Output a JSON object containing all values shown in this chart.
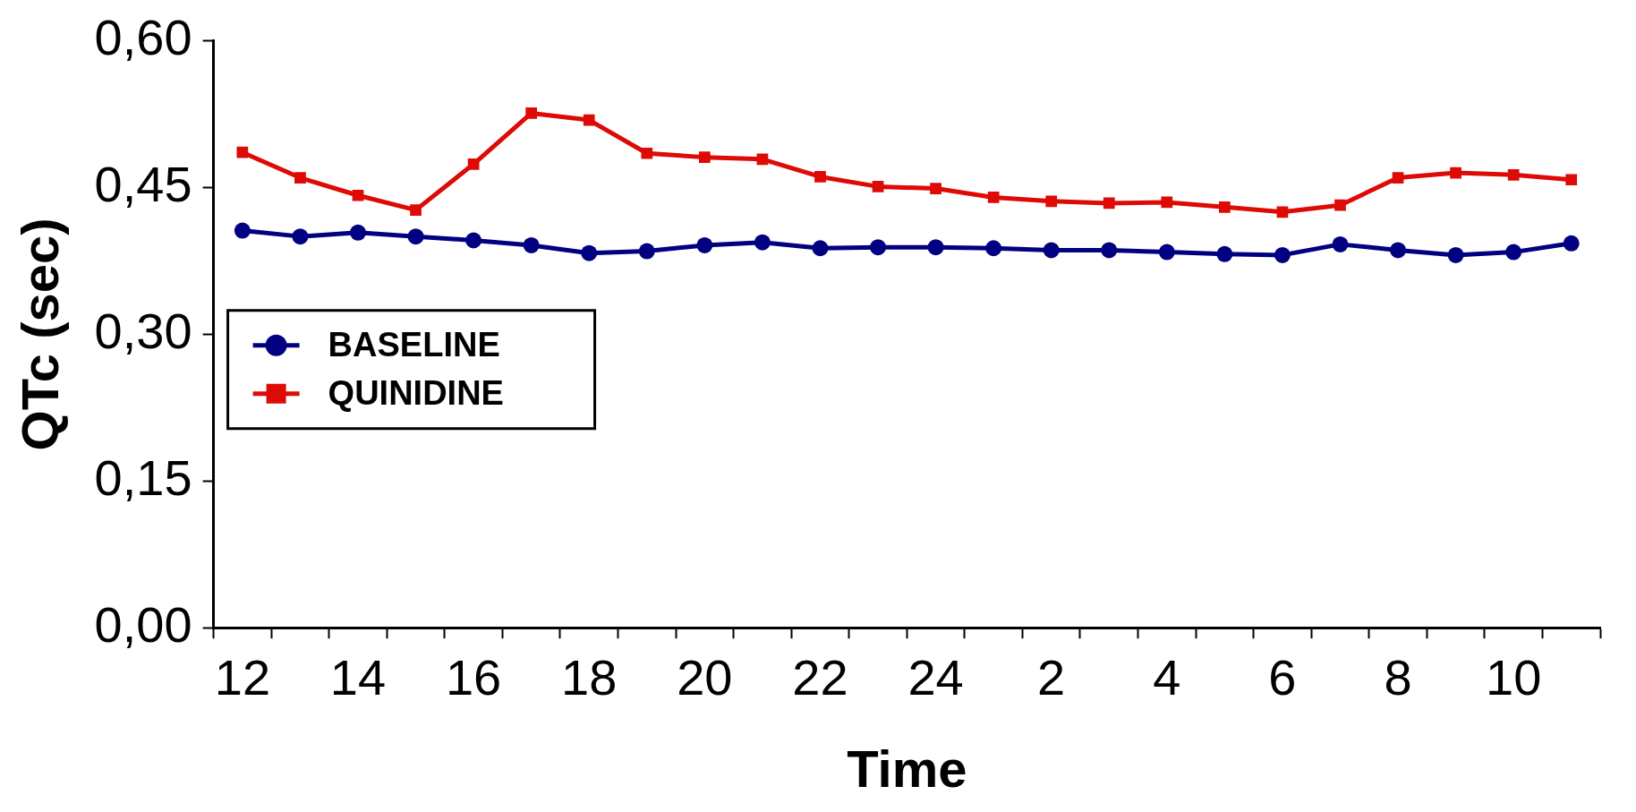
{
  "chart_data": {
    "type": "line",
    "xlabel": "Time",
    "ylabel": "QTc (sec)",
    "categories": [
      "12",
      null,
      "14",
      null,
      "16",
      null,
      "18",
      null,
      "20",
      null,
      "22",
      null,
      "24",
      null,
      "2",
      null,
      "4",
      null,
      "6",
      null,
      "8",
      null,
      "10",
      null
    ],
    "series": [
      {
        "name": "BASELINE",
        "color": "#000080",
        "marker": "circle",
        "values": [
          0.406,
          0.4,
          0.404,
          0.4,
          0.396,
          0.391,
          0.383,
          0.385,
          0.391,
          0.394,
          0.388,
          0.389,
          0.389,
          0.388,
          0.386,
          0.386,
          0.384,
          0.382,
          0.381,
          0.392,
          0.386,
          0.381,
          0.384,
          0.393
        ]
      },
      {
        "name": "QUINIDINE",
        "color": "#dd0a05",
        "marker": "square",
        "values": [
          0.486,
          0.46,
          0.442,
          0.427,
          0.474,
          0.526,
          0.519,
          0.485,
          0.481,
          0.479,
          0.461,
          0.451,
          0.449,
          0.44,
          0.436,
          0.434,
          0.435,
          0.43,
          0.425,
          0.432,
          0.46,
          0.465,
          0.463,
          0.458
        ]
      }
    ],
    "ylim": [
      0,
      0.6
    ],
    "yticks": [
      {
        "value": 0,
        "label": "0,00"
      },
      {
        "value": 0.15,
        "label": "0,15"
      },
      {
        "value": 0.3,
        "label": "0,30"
      },
      {
        "value": 0.45,
        "label": "0,45"
      },
      {
        "value": 0.6,
        "label": "0,60"
      }
    ],
    "grid": false,
    "legend": "left",
    "line_style": "solid"
  }
}
